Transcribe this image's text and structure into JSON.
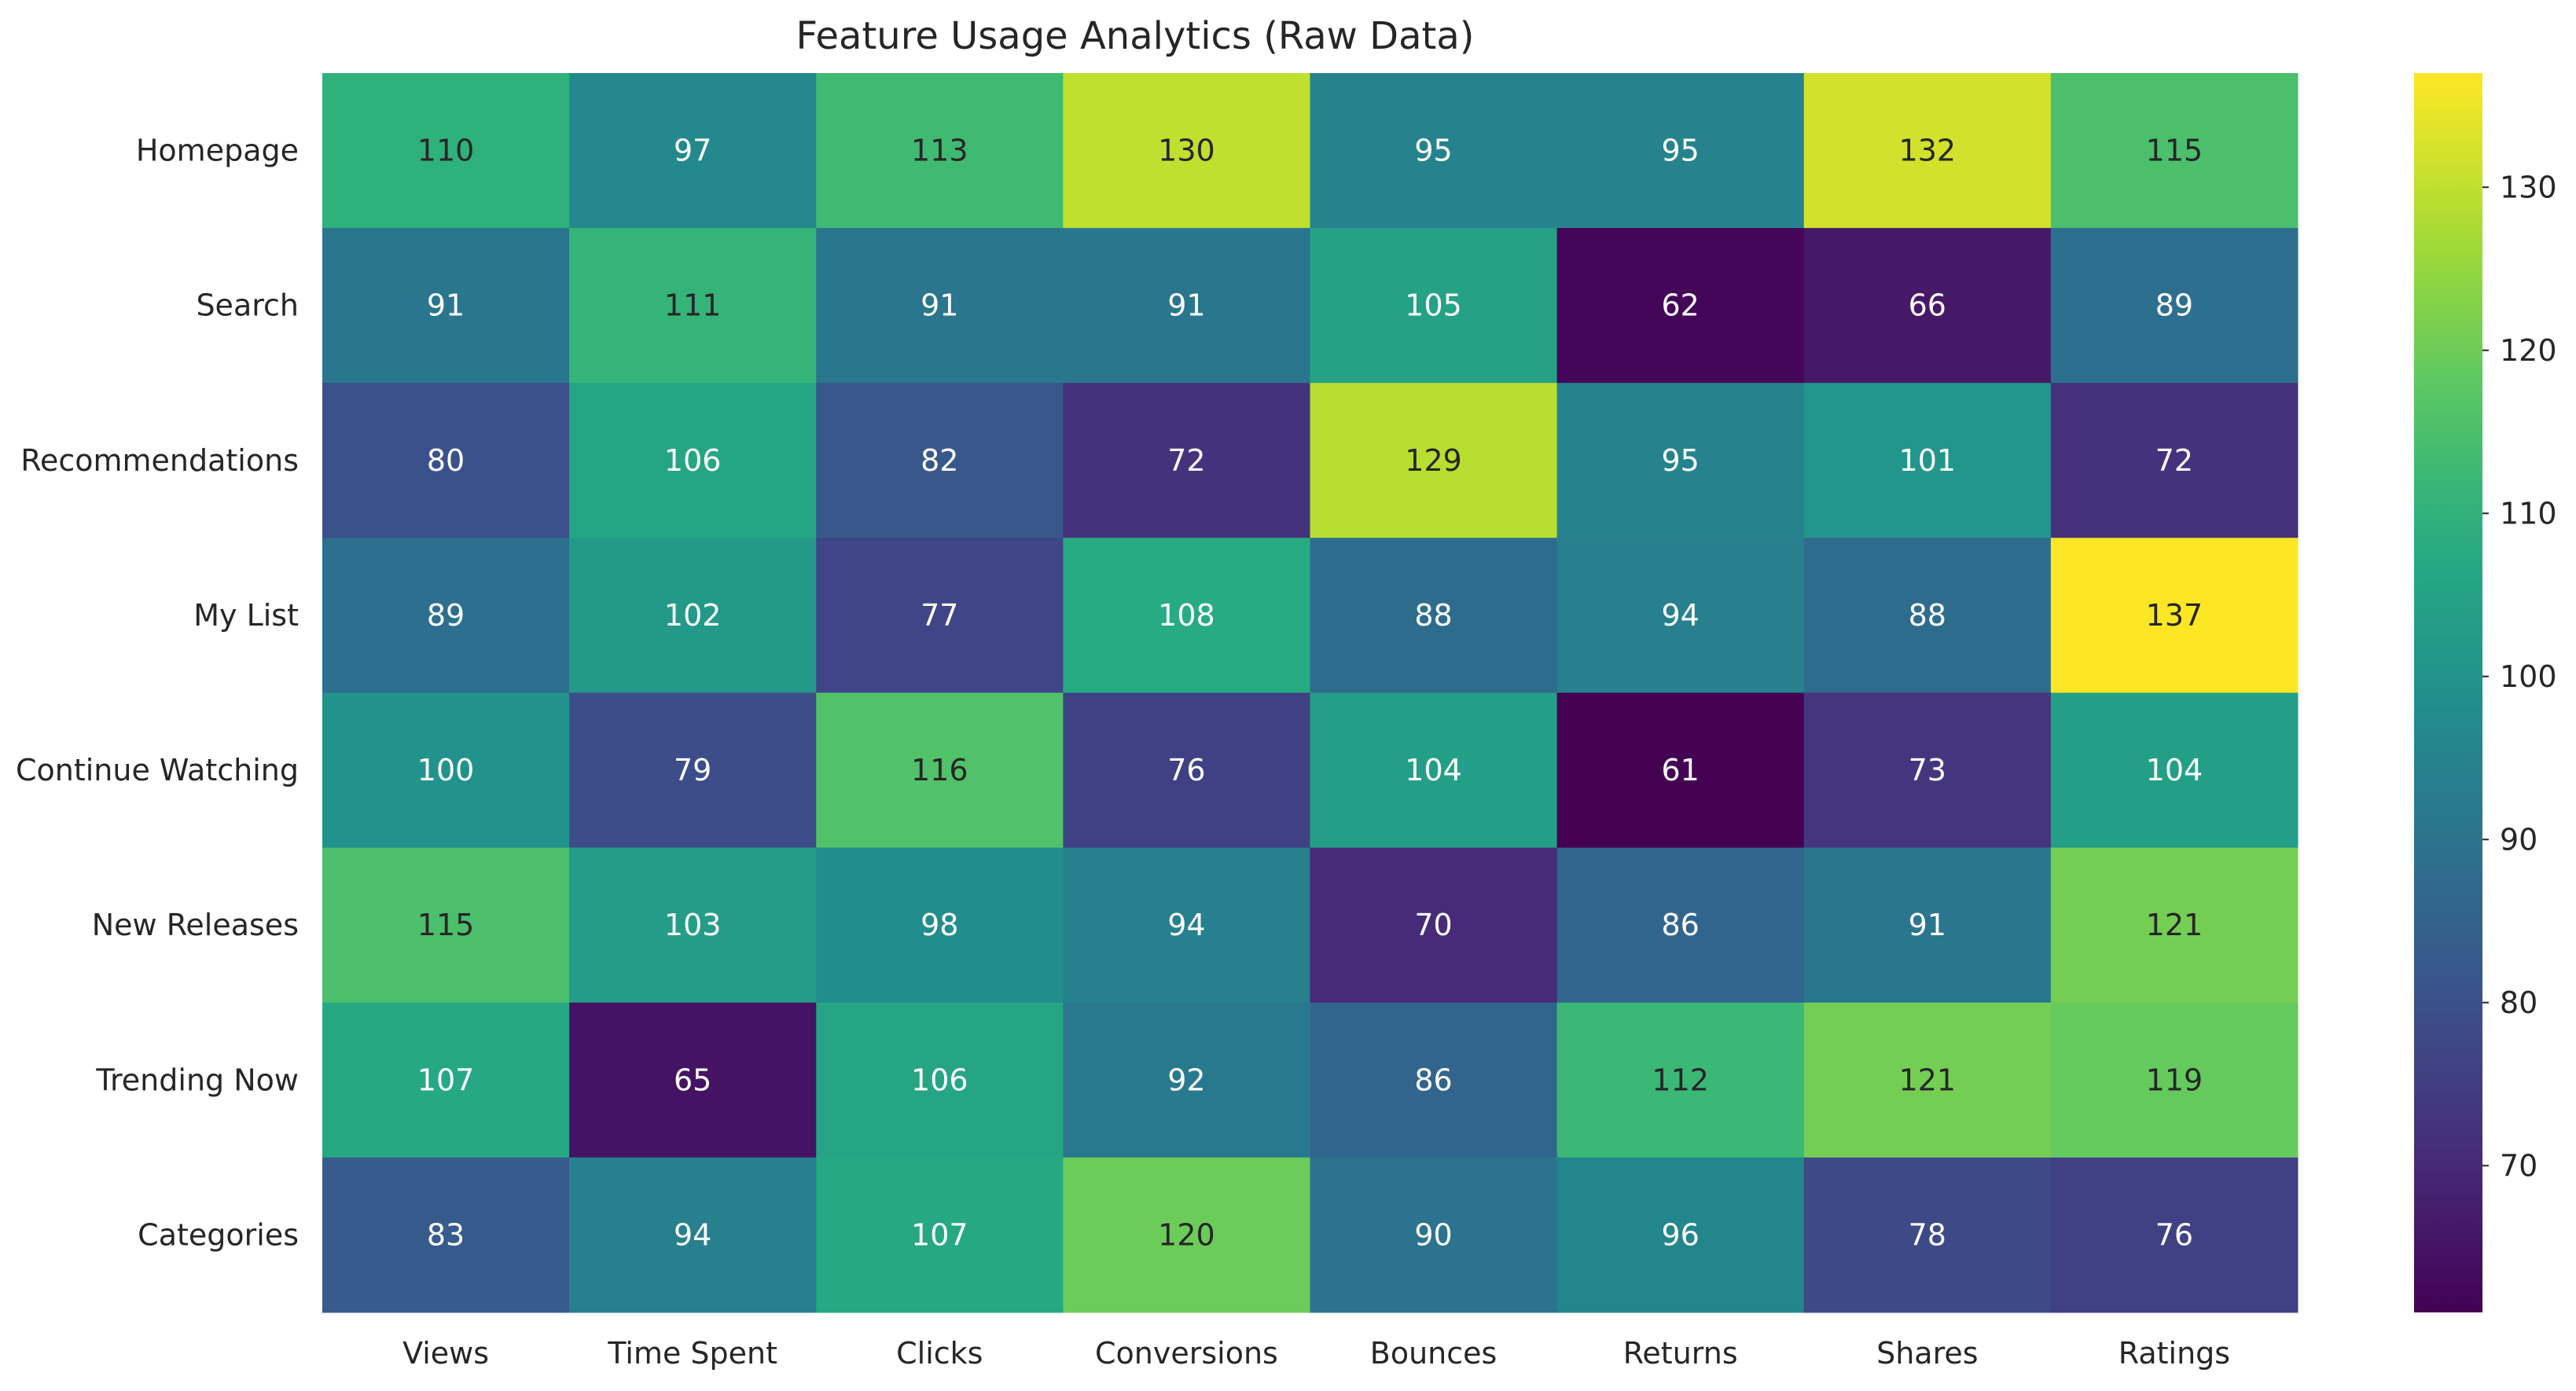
{
  "chart_data": {
    "type": "heatmap",
    "title": "Feature Usage Analytics (Raw Data)",
    "xlabel": "",
    "ylabel": "",
    "x_categories": [
      "Views",
      "Time Spent",
      "Clicks",
      "Conversions",
      "Bounces",
      "Returns",
      "Shares",
      "Ratings"
    ],
    "y_categories": [
      "Homepage",
      "Search",
      "Recommendations",
      "My List",
      "Continue Watching",
      "New Releases",
      "Trending Now",
      "Categories"
    ],
    "values": [
      [
        110,
        97,
        113,
        130,
        95,
        95,
        132,
        115
      ],
      [
        91,
        111,
        91,
        91,
        105,
        62,
        66,
        89
      ],
      [
        80,
        106,
        82,
        72,
        129,
        95,
        101,
        72
      ],
      [
        89,
        102,
        77,
        108,
        88,
        94,
        88,
        137
      ],
      [
        100,
        79,
        116,
        76,
        104,
        61,
        73,
        104
      ],
      [
        115,
        103,
        98,
        94,
        70,
        86,
        91,
        121
      ],
      [
        107,
        65,
        106,
        92,
        86,
        112,
        121,
        119
      ],
      [
        83,
        94,
        107,
        120,
        90,
        96,
        78,
        76
      ]
    ],
    "colormap": "viridis",
    "vmin": 61,
    "vmax": 137,
    "colorbar_ticks": [
      70,
      80,
      90,
      100,
      110,
      120,
      130
    ],
    "annotations": true,
    "grid": false
  }
}
